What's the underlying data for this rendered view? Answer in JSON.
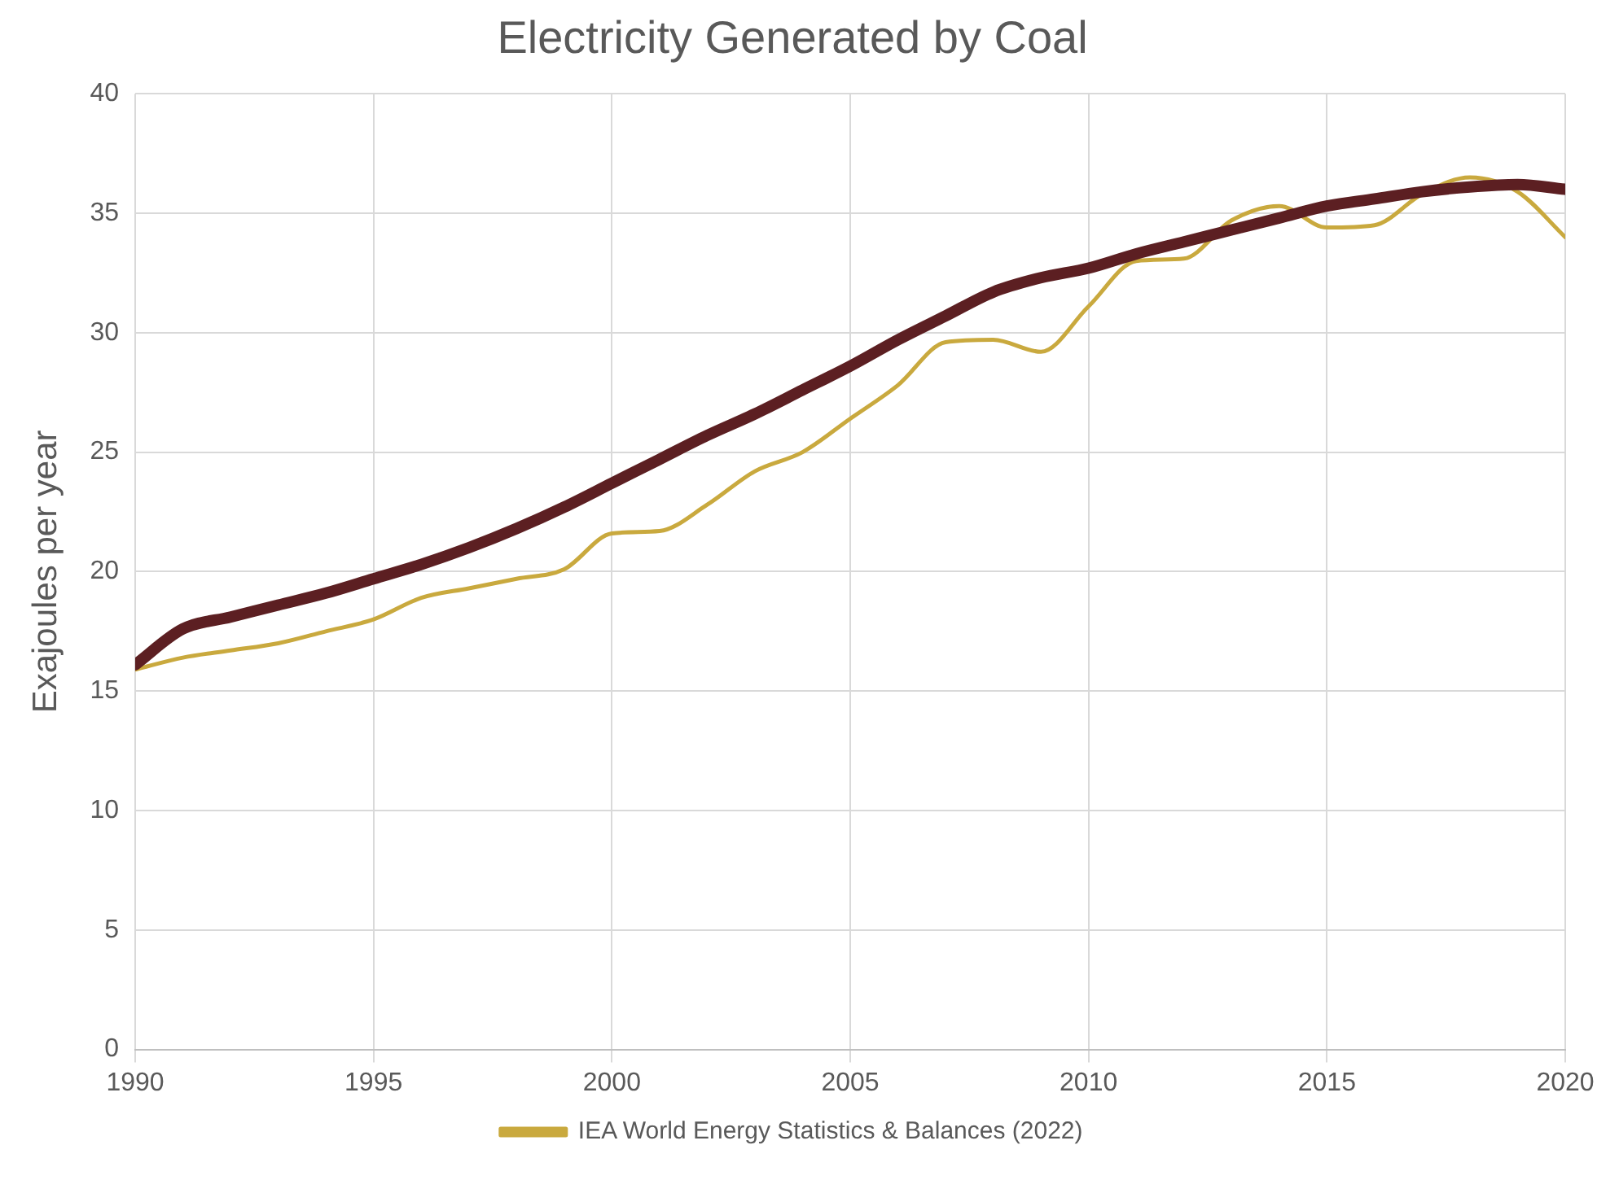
{
  "chart_data": {
    "type": "line",
    "title": "Electricity Generated by Coal",
    "ylabel": "Exajoules per year",
    "x": [
      1990,
      1991,
      1992,
      1993,
      1994,
      1995,
      1996,
      1997,
      1998,
      1999,
      2000,
      2001,
      2002,
      2003,
      2004,
      2005,
      2006,
      2007,
      2008,
      2009,
      2010,
      2011,
      2012,
      2013,
      2014,
      2015,
      2016,
      2017,
      2018,
      2019,
      2020
    ],
    "series": [
      {
        "color": "#5c1f22",
        "values": [
          16.1,
          17.6,
          18.1,
          18.6,
          19.1,
          19.7,
          20.3,
          21.0,
          21.8,
          22.7,
          23.7,
          24.7,
          25.7,
          26.6,
          27.6,
          28.6,
          29.7,
          30.7,
          31.7,
          32.3,
          32.7,
          33.3,
          33.8,
          34.3,
          34.8,
          35.3,
          35.6,
          35.9,
          36.1,
          36.2,
          36.0
        ]
      },
      {
        "name": "IEA World Energy Statistics & Balances (2022)",
        "color": "#c9a93e",
        "values": [
          15.9,
          16.4,
          16.7,
          17.0,
          17.5,
          18.0,
          18.9,
          19.3,
          19.7,
          20.1,
          21.6,
          21.7,
          22.8,
          24.2,
          25.0,
          26.4,
          27.8,
          29.6,
          29.7,
          29.2,
          31.1,
          33.0,
          33.1,
          34.7,
          35.3,
          34.4,
          34.5,
          35.8,
          36.5,
          35.9,
          34.0
        ]
      }
    ],
    "xlim": [
      1990,
      2020
    ],
    "xticks": [
      1990,
      1995,
      2000,
      2005,
      2010,
      2015,
      2020
    ],
    "ylim": [
      0,
      40
    ],
    "yticks": [
      0,
      5,
      10,
      15,
      20,
      25,
      30,
      35,
      40
    ],
    "grid": true,
    "legend": "bottom",
    "marker": "none",
    "line_style": "solid"
  }
}
